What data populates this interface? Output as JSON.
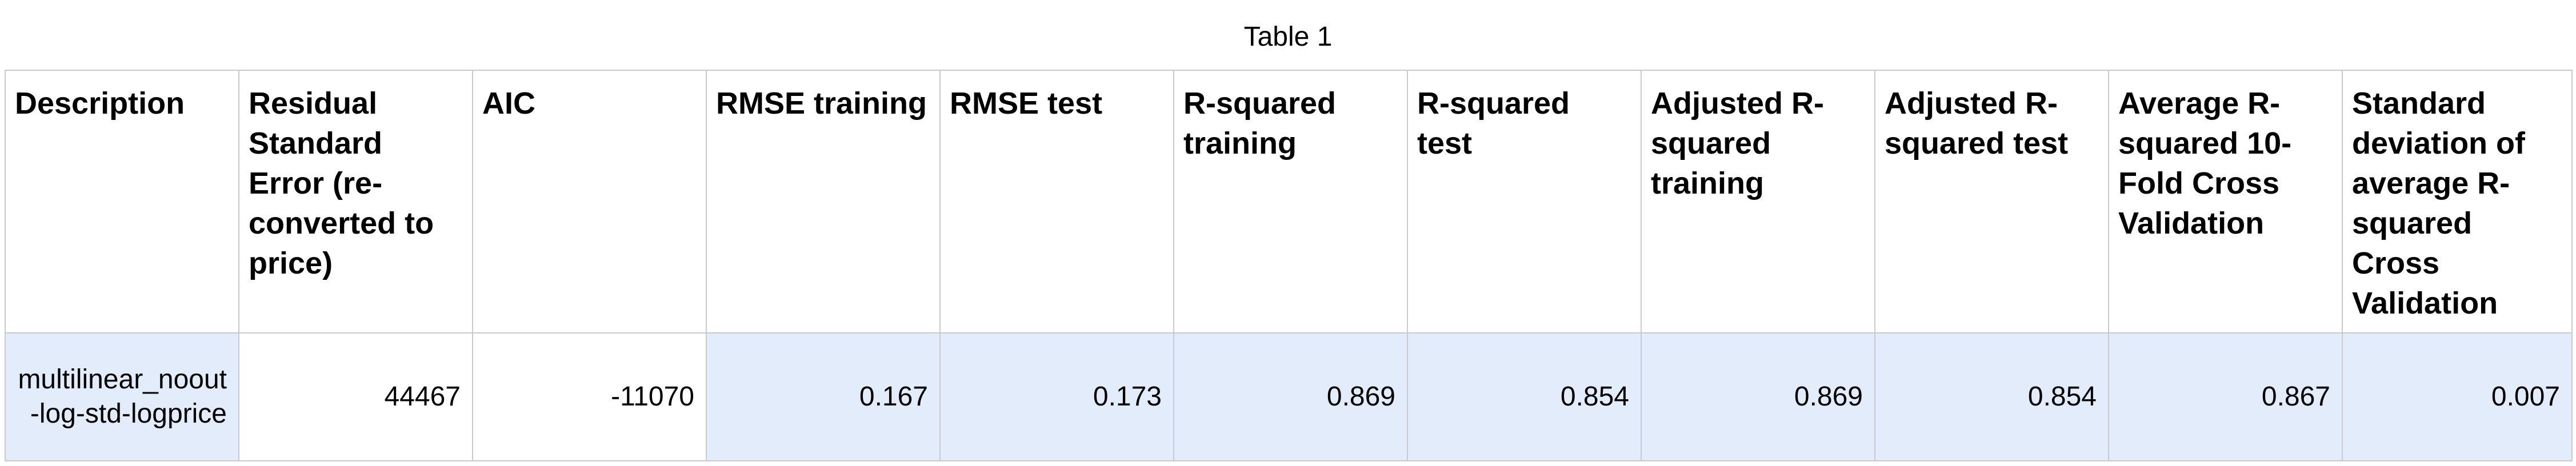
{
  "table": {
    "caption": "Table 1",
    "columns": [
      "Description",
      "Residual Standard Error (re-converted to price)",
      "AIC",
      "RMSE training",
      "RMSE test",
      "R-squared training",
      "R-squared test",
      "Adjusted R-squared training",
      "Adjusted R-squared test",
      "Average R-squared 10-Fold Cross Validation",
      "Standard deviation of average R-squared Cross Validation"
    ],
    "rows": [
      [
        "multilinear_noout-log-std-logprice",
        "44467",
        "-11070",
        "0.167",
        "0.173",
        "0.869",
        "0.854",
        "0.869",
        "0.854",
        "0.867",
        "0.007"
      ]
    ],
    "highlight_color": "#e2ecfb",
    "border_color": "#c9c9cf"
  }
}
